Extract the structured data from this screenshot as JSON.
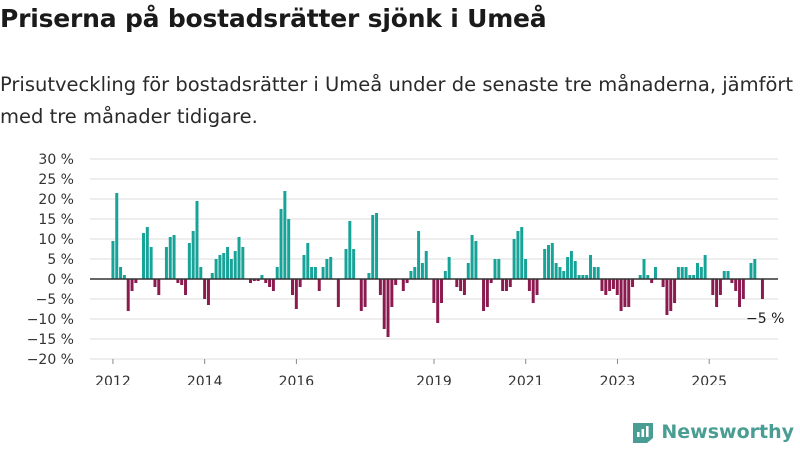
{
  "header": {
    "title": "Priserna på bostadsrätter sjönk i Umeå",
    "subtitle": "Prisutveckling för bostadsrätter i Umeå under de senaste tre månaderna, jämfört med tre månader tidigare."
  },
  "brand": {
    "name": "Newsworthy",
    "icon": "chart-logo-icon"
  },
  "colors": {
    "positive": "#17a398",
    "negative": "#8b1a4f",
    "grid": "#dddddd",
    "axis": "#333333",
    "brand": "#4a9d93"
  },
  "chart_data": {
    "type": "bar",
    "title": "Priserna på bostadsrätter sjönk i Umeå",
    "subtitle": "Prisutveckling för bostadsrätter i Umeå under de senaste tre månaderna, jämfört med tre månader tidigare.",
    "xlabel": "",
    "ylabel": "",
    "ylim": [
      -20,
      30
    ],
    "yticks": [
      -20,
      -15,
      -10,
      -5,
      0,
      5,
      10,
      15,
      20,
      25,
      30
    ],
    "ytick_labels": [
      "−20 %",
      "−15 %",
      "−10 %",
      "−5 %",
      "0 %",
      "5 %",
      "10 %",
      "15 %",
      "20 %",
      "25 %",
      "30 %"
    ],
    "xlim": [
      2011.5,
      2026.5
    ],
    "xticks": [
      2012,
      2014,
      2016,
      2019,
      2021,
      2023,
      2025
    ],
    "xtick_labels": [
      "2012",
      "2014",
      "2016",
      "2019",
      "2021",
      "2023",
      "2025"
    ],
    "grid": true,
    "annotation": {
      "text": "−5 %",
      "x": 2025.85,
      "y": -5
    },
    "start": 2012.0,
    "step": 0.0833,
    "values": [
      9.5,
      21.5,
      3,
      1,
      -8,
      -3,
      -1,
      0,
      11.5,
      13,
      8,
      -2,
      -4,
      0,
      8,
      10.5,
      11,
      -1,
      -1.5,
      -4,
      9,
      12,
      19.5,
      3,
      -5,
      -6.5,
      1.5,
      5,
      6,
      6.5,
      8,
      5,
      7,
      10.5,
      8,
      0,
      -1,
      -0.5,
      -0.5,
      1,
      -1,
      -2,
      -3,
      3,
      17.5,
      22,
      15,
      -4,
      -7.5,
      -2,
      6,
      9,
      3,
      3,
      -3,
      3,
      5,
      5.5,
      0,
      -7,
      0,
      7.5,
      14.5,
      7.5,
      0,
      -8,
      -7,
      1.5,
      16,
      16.5,
      -4,
      -12.5,
      -14.5,
      -7,
      -1.5,
      0,
      -3,
      -1,
      2,
      3,
      12,
      4,
      7,
      0,
      -6,
      -11,
      -6,
      2,
      5.5,
      0,
      -2,
      -3,
      -4,
      4,
      11,
      9.5,
      0,
      -8,
      -7,
      -1,
      5,
      5,
      -3,
      -3,
      -2,
      10,
      12,
      13,
      5,
      -3,
      -6,
      -4,
      0,
      7.5,
      8.5,
      9,
      4,
      3,
      2,
      5.5,
      7,
      4.5,
      1,
      1,
      1,
      6,
      3,
      3,
      -3,
      -4,
      -3,
      -2.5,
      -4,
      -8,
      -7,
      -7,
      -2,
      0,
      1,
      5,
      1,
      -1,
      3,
      0,
      -2,
      -9,
      -8,
      -6,
      3,
      3,
      3,
      1,
      1,
      4,
      3,
      6,
      0,
      -4,
      -7,
      -4,
      2,
      2,
      -1,
      -3,
      -7,
      -5,
      0,
      4,
      5,
      0,
      -5
    ]
  }
}
